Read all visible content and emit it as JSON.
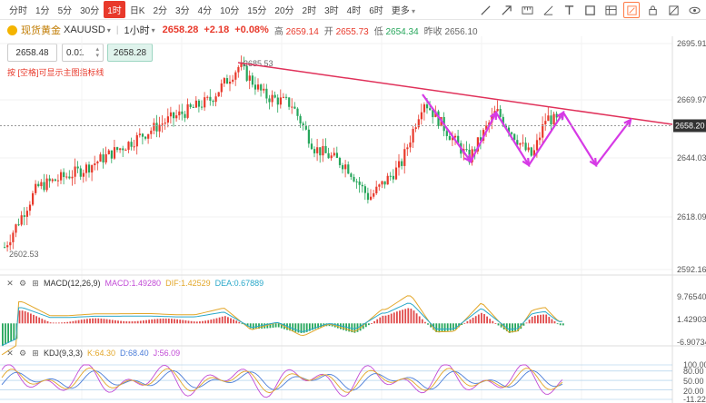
{
  "toolbar": {
    "timeframes": [
      {
        "label": "分时",
        "active": false
      },
      {
        "label": "1分",
        "active": false
      },
      {
        "label": "5分",
        "active": false
      },
      {
        "label": "30分",
        "active": false
      },
      {
        "label": "1时",
        "active": true
      },
      {
        "label": "日K",
        "active": false
      },
      {
        "label": "2分",
        "active": false
      },
      {
        "label": "3分",
        "active": false
      },
      {
        "label": "4分",
        "active": false
      },
      {
        "label": "10分",
        "active": false
      },
      {
        "label": "15分",
        "active": false
      },
      {
        "label": "20分",
        "active": false
      },
      {
        "label": "2时",
        "active": false
      },
      {
        "label": "3时",
        "active": false
      },
      {
        "label": "4时",
        "active": false
      },
      {
        "label": "6时",
        "active": false
      },
      {
        "label": "更多",
        "active": false
      }
    ],
    "tools": [
      "trendline-icon",
      "arrow-icon",
      "ruler-icon",
      "measure-icon",
      "text-tool-icon",
      "rectangle-icon",
      "table-icon",
      "edit-icon",
      "lock-icon",
      "visibility-icon",
      "eye-icon"
    ]
  },
  "symbol": {
    "name": "现货黄金",
    "code": "XAUUSD",
    "period": "1小时",
    "price": "2658.28",
    "change": "+2.18",
    "change_pct": "+0.08%",
    "high_label": "高",
    "high": "2659.14",
    "open_label": "开",
    "open": "2655.73",
    "low_label": "低",
    "low": "2654.34",
    "prev_label": "昨收",
    "prev": "2656.10",
    "color_up": "#e8392b",
    "color_down": "#26a65b"
  },
  "order": {
    "sell": "2658.48",
    "qty": "0.01",
    "buy": "2658.28"
  },
  "hint": "按 [空格]可显示主图指标线",
  "price_axis": {
    "ticks": [
      "2695.91",
      "2669.97",
      "2644.03",
      "2618.09",
      "2592.16"
    ],
    "current": "2658.20",
    "annot_high": "2685.53",
    "annot_low": "2602.53"
  },
  "macd": {
    "name": "MACD(12,26,9)",
    "macd": "MACD:1.49280",
    "dif": "DIF:1.42529",
    "dea": "DEA:0.67889",
    "ticks": [
      "9.76540",
      "1.42903",
      "-6.90734"
    ]
  },
  "kdj": {
    "name": "KDJ(9,3,3)",
    "k": "K:64.30",
    "d": "D:68.40",
    "j": "J:56.09",
    "ticks": [
      "100.00",
      "80.00",
      "50.00",
      "20.00",
      "-11.22"
    ]
  },
  "colors": {
    "trendline": "#e0315a",
    "pattern": "#d63ae6",
    "macd_dif": "#e3a72a",
    "macd_dea": "#2aa8c9",
    "kdj_k": "#e3a72a",
    "kdj_d": "#4a7cd8",
    "kdj_j": "#c24bd6"
  }
}
